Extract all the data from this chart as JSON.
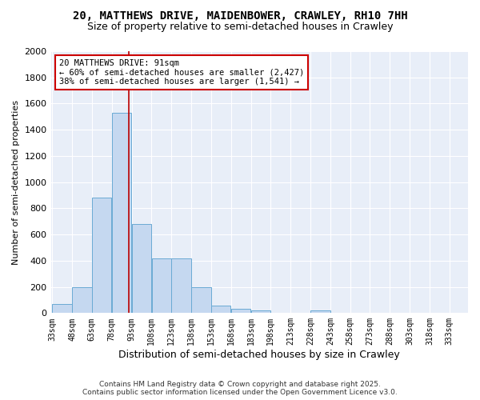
{
  "title_line1": "20, MATTHEWS DRIVE, MAIDENBOWER, CRAWLEY, RH10 7HH",
  "title_line2": "Size of property relative to semi-detached houses in Crawley",
  "xlabel": "Distribution of semi-detached houses by size in Crawley",
  "ylabel": "Number of semi-detached properties",
  "bin_edges": [
    33,
    48,
    63,
    78,
    93,
    108,
    123,
    138,
    153,
    168,
    183,
    198,
    213,
    228,
    243,
    258,
    273,
    288,
    303,
    318,
    333
  ],
  "bar_heights": [
    70,
    200,
    880,
    1530,
    680,
    420,
    420,
    200,
    55,
    30,
    20,
    0,
    0,
    20,
    0,
    0,
    0,
    0,
    0,
    0
  ],
  "bar_color": "#c5d8f0",
  "bar_edge_color": "#6aaad4",
  "property_sqm": 91,
  "red_line_color": "#bb0000",
  "annotation_box_color": "#cc0000",
  "annotation_text_line1": "20 MATTHEWS DRIVE: 91sqm",
  "annotation_text_line2": "← 60% of semi-detached houses are smaller (2,427)",
  "annotation_text_line3": "38% of semi-detached houses are larger (1,541) →",
  "ylim": [
    0,
    2000
  ],
  "yticks": [
    0,
    200,
    400,
    600,
    800,
    1000,
    1200,
    1400,
    1600,
    1800,
    2000
  ],
  "plot_bg_color": "#e8eef8",
  "fig_bg_color": "#ffffff",
  "grid_color": "#ffffff",
  "footer_line1": "Contains HM Land Registry data © Crown copyright and database right 2025.",
  "footer_line2": "Contains public sector information licensed under the Open Government Licence v3.0.",
  "title_fontsize": 10,
  "subtitle_fontsize": 9,
  "annotation_fontsize": 7.5,
  "ylabel_fontsize": 8,
  "xlabel_fontsize": 9
}
